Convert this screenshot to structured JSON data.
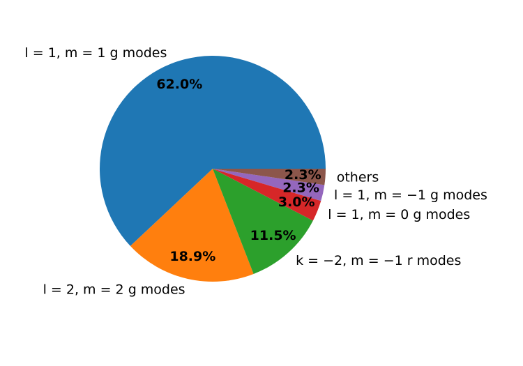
{
  "chart_data": {
    "type": "pie",
    "categories": [
      "l = 1, m = 1 g modes",
      "l = 2, m = 2 g modes",
      "k = −2, m = −1 r modes",
      "l = 1, m = 0 g modes",
      "l = 1, m = −1 g modes",
      "others"
    ],
    "values": [
      62.0,
      18.9,
      11.5,
      3.0,
      2.3,
      2.3
    ],
    "value_labels": [
      "62.0%",
      "18.9%",
      "11.5%",
      "3.0%",
      "2.3%",
      "2.3%"
    ],
    "colors": [
      "#1f77b4",
      "#ff7f0e",
      "#2ca02c",
      "#d62728",
      "#9467bd",
      "#8c564b"
    ]
  }
}
